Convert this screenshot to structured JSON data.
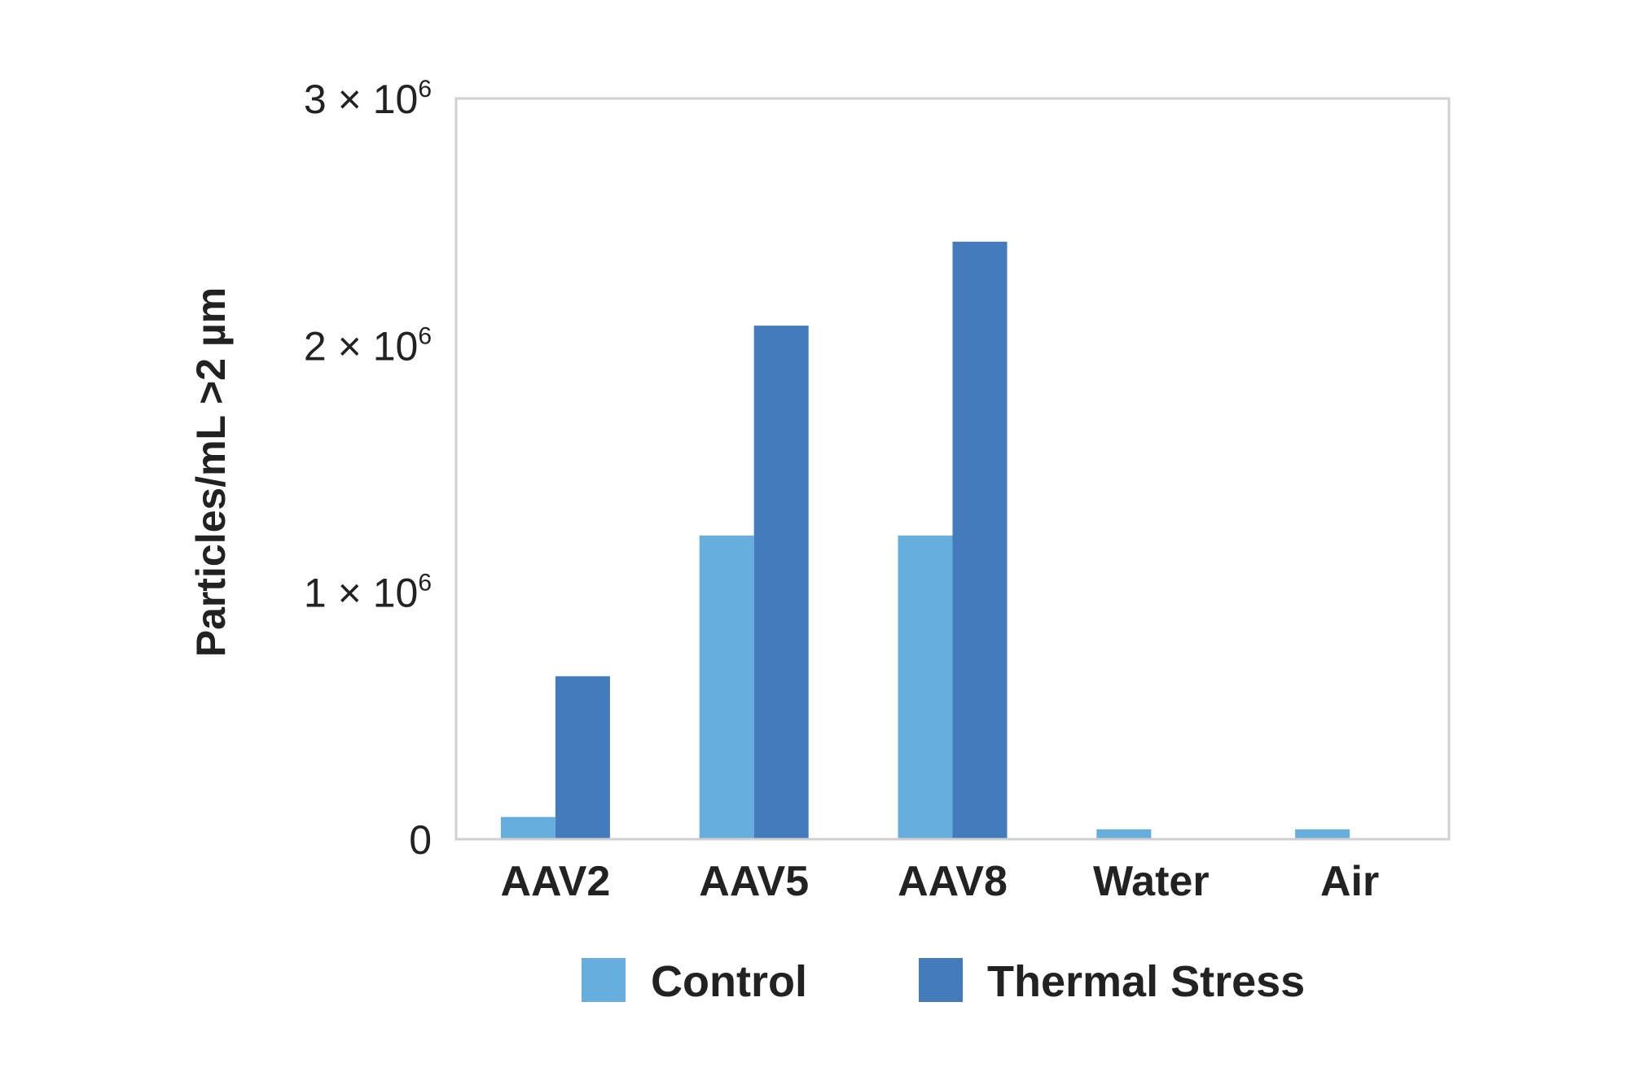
{
  "chart_data": {
    "type": "bar",
    "title": "",
    "xlabel": "",
    "ylabel": "Particles/mL >2 µm",
    "categories": [
      "AAV2",
      "AAV5",
      "AAV8",
      "Water",
      "Air"
    ],
    "series": [
      {
        "name": "Control",
        "color": "#66AEDD",
        "values": [
          90000,
          1230000,
          1230000,
          40000,
          40000
        ]
      },
      {
        "name": "Thermal Stress",
        "color": "#437BBC",
        "values": [
          660000,
          2080000,
          2420000,
          0,
          0
        ]
      }
    ],
    "ylim": [
      0,
      3000000
    ],
    "yticks": [
      {
        "value": 0,
        "mantissa": "0",
        "exp": ""
      },
      {
        "value": 1000000,
        "mantissa": "1 × 10",
        "exp": "6"
      },
      {
        "value": 2000000,
        "mantissa": "2 × 10",
        "exp": "6"
      },
      {
        "value": 3000000,
        "mantissa": "3 × 10",
        "exp": "6"
      }
    ],
    "grid": false,
    "legend_position": "bottom",
    "frame_color": "#D0D0D0"
  }
}
